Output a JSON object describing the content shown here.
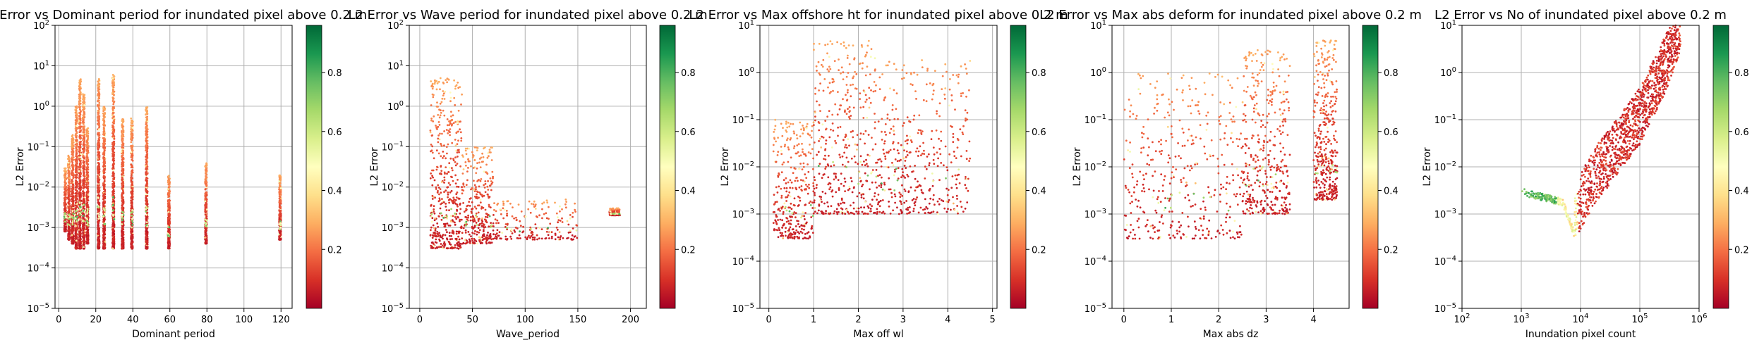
{
  "figure": {
    "colormap": "RdYlGn",
    "grid": true,
    "panels": [
      {
        "title": "L2 Error vs Dominant period for inundated pixel above 0.2 m",
        "xlabel": "Dominant period",
        "ylabel": "L2 Error",
        "xscale": "linear",
        "xlim": [
          -2,
          126
        ],
        "xticks": [
          0,
          20,
          40,
          60,
          80,
          100,
          120
        ],
        "yscale": "log",
        "ylim": [
          1e-05,
          100
        ],
        "colorbar_ticks": [
          0.2,
          0.4,
          0.6,
          0.8
        ],
        "colorbar_range": [
          0,
          0.96
        ]
      },
      {
        "title": "L2 Error vs Wave period for inundated pixel above 0.2 m",
        "xlabel": "Wave_period",
        "ylabel": "L2 Error",
        "xscale": "linear",
        "xlim": [
          -10,
          215
        ],
        "xticks": [
          0,
          50,
          100,
          150,
          200
        ],
        "yscale": "log",
        "ylim": [
          1e-05,
          100
        ],
        "colorbar_ticks": [
          0.2,
          0.4,
          0.6,
          0.8
        ],
        "colorbar_range": [
          0,
          0.96
        ]
      },
      {
        "title": "L2 Error vs Max offshore ht for inundated pixel above 0.2 m",
        "xlabel": "Max off wl",
        "ylabel": "L2 Error",
        "xscale": "linear",
        "xlim": [
          -0.2,
          5.1
        ],
        "xticks": [
          0,
          1,
          2,
          3,
          4,
          5
        ],
        "yscale": "log",
        "ylim": [
          1e-05,
          10
        ],
        "colorbar_ticks": [
          0.2,
          0.4,
          0.6,
          0.8
        ],
        "colorbar_range": [
          0,
          0.96
        ]
      },
      {
        "title": "L2 Error vs Max abs deform for inundated pixel above 0.2 m",
        "xlabel": "Max abs dz",
        "ylabel": "L2 Error",
        "xscale": "linear",
        "xlim": [
          -0.25,
          4.75
        ],
        "xticks": [
          0,
          1,
          2,
          3,
          4
        ],
        "yscale": "log",
        "ylim": [
          1e-05,
          10
        ],
        "colorbar_ticks": [
          0.2,
          0.4,
          0.6,
          0.8
        ],
        "colorbar_range": [
          0,
          0.96
        ]
      },
      {
        "title": "L2 Error vs No of inundated pixel above 0.2 m",
        "xlabel": "Inundation pixel count",
        "ylabel": "L2 Error",
        "xscale": "log",
        "xlim": [
          100,
          1000000
        ],
        "xticks": [
          100,
          1000,
          10000,
          100000,
          1000000
        ],
        "yscale": "log",
        "ylim": [
          1e-05,
          10
        ],
        "colorbar_ticks": [
          0.2,
          0.4,
          0.6,
          0.8
        ],
        "colorbar_range": [
          0,
          0.96
        ]
      }
    ]
  },
  "chart_data": [
    {
      "type": "scatter",
      "title": "L2 Error vs Dominant period for inundated pixel above 0.2 m",
      "xlabel": "Dominant period",
      "ylabel": "L2 Error",
      "xlim": [
        -2,
        126
      ],
      "ylim": [
        1e-05,
        100
      ],
      "yscale": "log",
      "colorbar_ticks": [
        0.2,
        0.4,
        0.6,
        0.8
      ],
      "clusters": [
        {
          "x_min": 3,
          "x_max": 4,
          "y_min": 0.0008,
          "y_max": 0.03
        },
        {
          "x_min": 5,
          "x_max": 6,
          "y_min": 0.0005,
          "y_max": 0.06
        },
        {
          "x_min": 7,
          "x_max": 8,
          "y_min": 0.0004,
          "y_max": 0.2
        },
        {
          "x_min": 9,
          "x_max": 10,
          "y_min": 0.0003,
          "y_max": 1
        },
        {
          "x_min": 11,
          "x_max": 12,
          "y_min": 0.0003,
          "y_max": 5
        },
        {
          "x_min": 13,
          "x_max": 14,
          "y_min": 0.0003,
          "y_max": 2
        },
        {
          "x_min": 15,
          "x_max": 16,
          "y_min": 0.0004,
          "y_max": 0.3
        },
        {
          "x_min": 21,
          "x_max": 22,
          "y_min": 0.0003,
          "y_max": 5
        },
        {
          "x_min": 24,
          "x_max": 25,
          "y_min": 0.0003,
          "y_max": 1
        },
        {
          "x_min": 29,
          "x_max": 30,
          "y_min": 0.0003,
          "y_max": 6
        },
        {
          "x_min": 34,
          "x_max": 35,
          "y_min": 0.0003,
          "y_max": 0.5
        },
        {
          "x_min": 39,
          "x_max": 40,
          "y_min": 0.0003,
          "y_max": 0.5
        },
        {
          "x_min": 47,
          "x_max": 48,
          "y_min": 0.0003,
          "y_max": 1
        },
        {
          "x_min": 59,
          "x_max": 60,
          "y_min": 0.0003,
          "y_max": 0.02
        },
        {
          "x_min": 79,
          "x_max": 80,
          "y_min": 0.0004,
          "y_max": 0.04
        },
        {
          "x_min": 119,
          "x_max": 120,
          "y_min": 0.0005,
          "y_max": 0.02
        }
      ]
    },
    {
      "type": "scatter",
      "title": "L2 Error vs Wave period for inundated pixel above 0.2 m",
      "xlabel": "Wave_period",
      "ylabel": "L2 Error",
      "xlim": [
        -10,
        215
      ],
      "ylim": [
        1e-05,
        100
      ],
      "yscale": "log",
      "colorbar_ticks": [
        0.2,
        0.4,
        0.6,
        0.8
      ],
      "clusters": [
        {
          "x_min": 10,
          "x_max": 40,
          "y_min": 0.0003,
          "y_max": 5
        },
        {
          "x_min": 40,
          "x_max": 70,
          "y_min": 0.0004,
          "y_max": 0.1
        },
        {
          "x_min": 70,
          "x_max": 150,
          "y_min": 0.0005,
          "y_max": 0.005
        },
        {
          "x_min": 180,
          "x_max": 190,
          "y_min": 0.002,
          "y_max": 0.003
        }
      ]
    },
    {
      "type": "scatter",
      "title": "L2 Error vs Max offshore ht for inundated pixel above 0.2 m",
      "xlabel": "Max off wl",
      "ylabel": "L2 Error",
      "xlim": [
        -0.2,
        5.1
      ],
      "ylim": [
        1e-05,
        10
      ],
      "yscale": "log",
      "colorbar_ticks": [
        0.2,
        0.4,
        0.6,
        0.8
      ],
      "clusters": [
        {
          "x_min": 0.1,
          "x_max": 1.0,
          "y_min": 0.0003,
          "y_max": 0.1
        },
        {
          "x_min": 1.0,
          "x_max": 2.5,
          "y_min": 0.001,
          "y_max": 5
        },
        {
          "x_min": 2.5,
          "x_max": 4.5,
          "y_min": 0.001,
          "y_max": 2
        }
      ]
    },
    {
      "type": "scatter",
      "title": "L2 Error vs Max abs deform for inundated pixel above 0.2 m",
      "xlabel": "Max abs dz",
      "ylabel": "L2 Error",
      "xlim": [
        -0.25,
        4.75
      ],
      "ylim": [
        1e-05,
        10
      ],
      "yscale": "log",
      "colorbar_ticks": [
        0.2,
        0.4,
        0.6,
        0.8
      ],
      "clusters": [
        {
          "x_min": 0,
          "x_max": 2.5,
          "y_min": 0.0003,
          "y_max": 1
        },
        {
          "x_min": 2.5,
          "x_max": 3.5,
          "y_min": 0.001,
          "y_max": 3
        },
        {
          "x_min": 4.0,
          "x_max": 4.5,
          "y_min": 0.002,
          "y_max": 5
        }
      ]
    },
    {
      "type": "scatter",
      "title": "L2 Error vs No of inundated pixel above 0.2 m",
      "xlabel": "Inundation pixel count",
      "ylabel": "L2 Error",
      "xlim": [
        100,
        1000000
      ],
      "xscale": "log",
      "ylim": [
        1e-05,
        10
      ],
      "yscale": "log",
      "colorbar_ticks": [
        0.2,
        0.4,
        0.6,
        0.8
      ],
      "trend": [
        {
          "x": 1000,
          "y": 0.0025
        },
        {
          "x": 5000,
          "y": 0.0015
        },
        {
          "x": 8000,
          "y": 0.0003
        },
        {
          "x": 20000,
          "y": 0.002
        },
        {
          "x": 100000,
          "y": 0.03
        },
        {
          "x": 300000,
          "y": 0.5
        },
        {
          "x": 500000,
          "y": 3
        }
      ]
    }
  ]
}
